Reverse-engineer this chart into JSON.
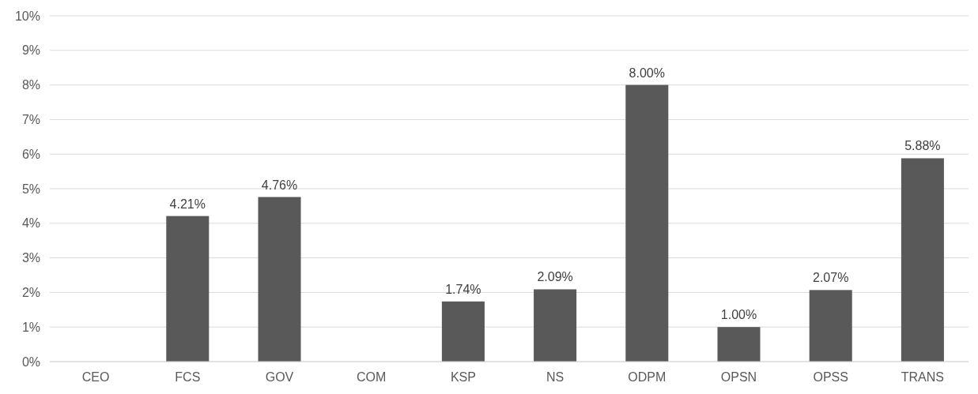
{
  "chart_data": {
    "type": "bar",
    "categories": [
      "CEO",
      "FCS",
      "GOV",
      "COM",
      "KSP",
      "NS",
      "ODPM",
      "OPSN",
      "OPSS",
      "TRANS"
    ],
    "values": [
      null,
      4.21,
      4.76,
      null,
      1.74,
      2.09,
      8.0,
      1.0,
      2.07,
      5.88
    ],
    "value_labels": [
      null,
      "4.21%",
      "4.76%",
      null,
      "1.74%",
      "2.09%",
      "8.00%",
      "1.00%",
      "2.07%",
      "5.88%"
    ],
    "color": "#595959",
    "ylim": [
      0,
      10
    ],
    "yticks": [
      {
        "value": 0,
        "label": "0%"
      },
      {
        "value": 1,
        "label": "1%"
      },
      {
        "value": 2,
        "label": "2%"
      },
      {
        "value": 3,
        "label": "3%"
      },
      {
        "value": 4,
        "label": "4%"
      },
      {
        "value": 5,
        "label": "5%"
      },
      {
        "value": 6,
        "label": "6%"
      },
      {
        "value": 7,
        "label": "7%"
      },
      {
        "value": 8,
        "label": "8%"
      },
      {
        "value": 9,
        "label": "9%"
      },
      {
        "value": 10,
        "label": "10%"
      }
    ],
    "grid": "y"
  }
}
